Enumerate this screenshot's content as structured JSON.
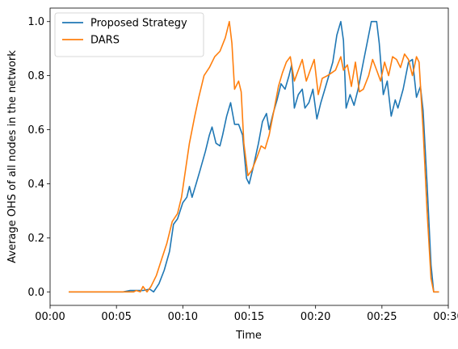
{
  "chart_data": {
    "type": "line",
    "xlabel": "Time",
    "ylabel": "Average OHS of all nodes in the network",
    "xlim": [
      0,
      30
    ],
    "ylim": [
      -0.05,
      1.05
    ],
    "x_unit": "minutes",
    "x_ticks": [
      {
        "value": 0,
        "label": "00:00"
      },
      {
        "value": 5,
        "label": "00:05"
      },
      {
        "value": 10,
        "label": "00:10"
      },
      {
        "value": 15,
        "label": "00:15"
      },
      {
        "value": 20,
        "label": "00:20"
      },
      {
        "value": 25,
        "label": "00:25"
      },
      {
        "value": 30,
        "label": "00:30"
      }
    ],
    "y_ticks": [
      {
        "value": 0.0,
        "label": "0.0"
      },
      {
        "value": 0.2,
        "label": "0.2"
      },
      {
        "value": 0.4,
        "label": "0.4"
      },
      {
        "value": 0.6,
        "label": "0.6"
      },
      {
        "value": 0.8,
        "label": "0.8"
      },
      {
        "value": 1.0,
        "label": "1.0"
      }
    ],
    "grid": false,
    "legend_position": "top-left",
    "series": [
      {
        "name": "Proposed Strategy",
        "color": "#1f77b4",
        "points": [
          [
            1.4,
            0.0
          ],
          [
            5.5,
            0.0
          ],
          [
            6.0,
            0.005
          ],
          [
            7.0,
            0.005
          ],
          [
            7.5,
            0.01
          ],
          [
            7.8,
            0.0
          ],
          [
            8.2,
            0.03
          ],
          [
            8.6,
            0.08
          ],
          [
            9.0,
            0.15
          ],
          [
            9.3,
            0.25
          ],
          [
            9.6,
            0.27
          ],
          [
            10.0,
            0.33
          ],
          [
            10.3,
            0.35
          ],
          [
            10.5,
            0.39
          ],
          [
            10.7,
            0.35
          ],
          [
            11.0,
            0.4
          ],
          [
            11.3,
            0.45
          ],
          [
            11.7,
            0.52
          ],
          [
            12.0,
            0.58
          ],
          [
            12.2,
            0.61
          ],
          [
            12.5,
            0.55
          ],
          [
            12.8,
            0.54
          ],
          [
            13.0,
            0.58
          ],
          [
            13.3,
            0.65
          ],
          [
            13.6,
            0.7
          ],
          [
            13.9,
            0.62
          ],
          [
            14.2,
            0.62
          ],
          [
            14.5,
            0.58
          ],
          [
            14.8,
            0.42
          ],
          [
            15.0,
            0.4
          ],
          [
            15.3,
            0.46
          ],
          [
            15.7,
            0.55
          ],
          [
            16.0,
            0.63
          ],
          [
            16.3,
            0.66
          ],
          [
            16.5,
            0.6
          ],
          [
            16.8,
            0.66
          ],
          [
            17.1,
            0.71
          ],
          [
            17.4,
            0.77
          ],
          [
            17.7,
            0.75
          ],
          [
            18.0,
            0.8
          ],
          [
            18.2,
            0.84
          ],
          [
            18.4,
            0.68
          ],
          [
            18.7,
            0.73
          ],
          [
            19.0,
            0.75
          ],
          [
            19.2,
            0.68
          ],
          [
            19.5,
            0.7
          ],
          [
            19.8,
            0.75
          ],
          [
            20.1,
            0.64
          ],
          [
            20.4,
            0.7
          ],
          [
            20.7,
            0.75
          ],
          [
            21.0,
            0.8
          ],
          [
            21.3,
            0.85
          ],
          [
            21.6,
            0.95
          ],
          [
            21.9,
            1.0
          ],
          [
            22.1,
            0.93
          ],
          [
            22.3,
            0.68
          ],
          [
            22.6,
            0.73
          ],
          [
            22.9,
            0.69
          ],
          [
            23.2,
            0.75
          ],
          [
            23.6,
            0.85
          ],
          [
            24.0,
            0.95
          ],
          [
            24.2,
            1.0
          ],
          [
            24.6,
            1.0
          ],
          [
            24.8,
            0.92
          ],
          [
            25.1,
            0.73
          ],
          [
            25.4,
            0.78
          ],
          [
            25.7,
            0.65
          ],
          [
            26.0,
            0.71
          ],
          [
            26.2,
            0.68
          ],
          [
            26.6,
            0.75
          ],
          [
            27.0,
            0.85
          ],
          [
            27.3,
            0.86
          ],
          [
            27.6,
            0.72
          ],
          [
            27.9,
            0.76
          ],
          [
            28.1,
            0.67
          ],
          [
            28.4,
            0.4
          ],
          [
            28.7,
            0.1
          ],
          [
            28.9,
            0.0
          ],
          [
            29.3,
            0.0
          ]
        ]
      },
      {
        "name": "DARS",
        "color": "#ff7f0e",
        "points": [
          [
            1.4,
            0.0
          ],
          [
            5.8,
            0.0
          ],
          [
            6.3,
            0.0
          ],
          [
            6.5,
            0.005
          ],
          [
            6.8,
            0.0
          ],
          [
            7.0,
            0.02
          ],
          [
            7.3,
            0.0
          ],
          [
            7.6,
            0.02
          ],
          [
            8.0,
            0.06
          ],
          [
            8.4,
            0.12
          ],
          [
            8.8,
            0.18
          ],
          [
            9.2,
            0.26
          ],
          [
            9.6,
            0.29
          ],
          [
            9.9,
            0.35
          ],
          [
            10.2,
            0.45
          ],
          [
            10.5,
            0.55
          ],
          [
            10.9,
            0.65
          ],
          [
            11.2,
            0.72
          ],
          [
            11.6,
            0.8
          ],
          [
            12.0,
            0.83
          ],
          [
            12.4,
            0.87
          ],
          [
            12.8,
            0.89
          ],
          [
            13.2,
            0.94
          ],
          [
            13.5,
            1.0
          ],
          [
            13.7,
            0.92
          ],
          [
            13.9,
            0.75
          ],
          [
            14.2,
            0.78
          ],
          [
            14.4,
            0.74
          ],
          [
            14.6,
            0.55
          ],
          [
            14.9,
            0.43
          ],
          [
            15.2,
            0.45
          ],
          [
            15.6,
            0.5
          ],
          [
            15.9,
            0.54
          ],
          [
            16.2,
            0.53
          ],
          [
            16.5,
            0.58
          ],
          [
            16.9,
            0.68
          ],
          [
            17.2,
            0.76
          ],
          [
            17.5,
            0.81
          ],
          [
            17.8,
            0.85
          ],
          [
            18.1,
            0.87
          ],
          [
            18.4,
            0.78
          ],
          [
            18.7,
            0.82
          ],
          [
            19.0,
            0.86
          ],
          [
            19.3,
            0.78
          ],
          [
            19.6,
            0.82
          ],
          [
            19.9,
            0.86
          ],
          [
            20.2,
            0.73
          ],
          [
            20.5,
            0.79
          ],
          [
            20.9,
            0.8
          ],
          [
            21.2,
            0.81
          ],
          [
            21.5,
            0.82
          ],
          [
            21.9,
            0.87
          ],
          [
            22.1,
            0.82
          ],
          [
            22.4,
            0.84
          ],
          [
            22.7,
            0.76
          ],
          [
            23.0,
            0.85
          ],
          [
            23.3,
            0.74
          ],
          [
            23.6,
            0.75
          ],
          [
            24.0,
            0.8
          ],
          [
            24.3,
            0.86
          ],
          [
            24.6,
            0.82
          ],
          [
            24.9,
            0.78
          ],
          [
            25.2,
            0.85
          ],
          [
            25.5,
            0.8
          ],
          [
            25.8,
            0.87
          ],
          [
            26.1,
            0.86
          ],
          [
            26.4,
            0.83
          ],
          [
            26.7,
            0.88
          ],
          [
            27.0,
            0.86
          ],
          [
            27.3,
            0.8
          ],
          [
            27.6,
            0.87
          ],
          [
            27.8,
            0.85
          ],
          [
            28.1,
            0.6
          ],
          [
            28.4,
            0.3
          ],
          [
            28.7,
            0.05
          ],
          [
            28.9,
            0.0
          ],
          [
            29.3,
            0.0
          ]
        ]
      }
    ]
  }
}
